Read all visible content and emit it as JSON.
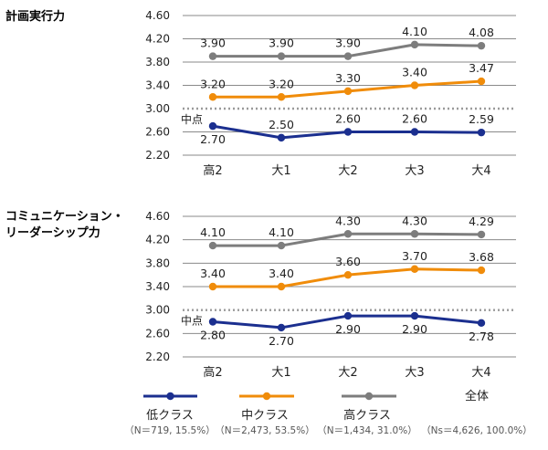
{
  "colors": {
    "low": "#1b2f8f",
    "mid": "#f08c0a",
    "high": "#7d7d7d",
    "grid": "#8a8a8a",
    "midline": "#9a9a9a"
  },
  "chart_data": [
    {
      "type": "line",
      "title": "計画実行力",
      "categories": [
        "高2",
        "大1",
        "大2",
        "大3",
        "大4"
      ],
      "yticks": [
        "4.60",
        "4.20",
        "3.80",
        "3.40",
        "3.00",
        "2.60",
        "2.20"
      ],
      "ylim": [
        2.2,
        4.6
      ],
      "midpoint": 3.0,
      "midpoint_label": "中点",
      "series": [
        {
          "name": "低クラス",
          "key": "low",
          "values": [
            2.7,
            2.5,
            2.6,
            2.6,
            2.59
          ],
          "labels": [
            "2.70",
            "2.50",
            "2.60",
            "2.60",
            "2.59"
          ],
          "label_pos": [
            "below",
            "above",
            "above",
            "above",
            "above"
          ]
        },
        {
          "name": "中クラス",
          "key": "mid",
          "values": [
            3.2,
            3.2,
            3.3,
            3.4,
            3.47
          ],
          "labels": [
            "3.20",
            "3.20",
            "3.30",
            "3.40",
            "3.47"
          ],
          "label_pos": [
            "above",
            "above",
            "above",
            "above",
            "above"
          ]
        },
        {
          "name": "高クラス",
          "key": "high",
          "values": [
            3.9,
            3.9,
            3.9,
            4.1,
            4.08
          ],
          "labels": [
            "3.90",
            "3.90",
            "3.90",
            "4.10",
            "4.08"
          ],
          "label_pos": [
            "above",
            "above",
            "above",
            "above",
            "above"
          ]
        }
      ]
    },
    {
      "type": "line",
      "title_lines": [
        "コミュニケーション・",
        "リーダーシップ力"
      ],
      "categories": [
        "高2",
        "大1",
        "大2",
        "大3",
        "大4"
      ],
      "yticks": [
        "4.60",
        "4.20",
        "3.80",
        "3.40",
        "3.00",
        "2.60",
        "2.20"
      ],
      "ylim": [
        2.2,
        4.6
      ],
      "midpoint": 3.0,
      "midpoint_label": "中点",
      "series": [
        {
          "name": "低クラス",
          "key": "low",
          "values": [
            2.8,
            2.7,
            2.9,
            2.9,
            2.78
          ],
          "labels": [
            "2.80",
            "2.70",
            "2.90",
            "2.90",
            "2.78"
          ],
          "label_pos": [
            "below",
            "below",
            "below",
            "below",
            "below"
          ]
        },
        {
          "name": "中クラス",
          "key": "mid",
          "values": [
            3.4,
            3.4,
            3.6,
            3.7,
            3.68
          ],
          "labels": [
            "3.40",
            "3.40",
            "3.60",
            "3.70",
            "3.68"
          ],
          "label_pos": [
            "above",
            "above",
            "above",
            "above",
            "above"
          ]
        },
        {
          "name": "高クラス",
          "key": "high",
          "values": [
            4.1,
            4.1,
            4.3,
            4.3,
            4.29
          ],
          "labels": [
            "4.10",
            "4.10",
            "4.30",
            "4.30",
            "4.29"
          ],
          "label_pos": [
            "above",
            "above",
            "above",
            "above",
            "above"
          ]
        }
      ]
    }
  ],
  "legend": [
    {
      "key": "low",
      "label": "低クラス",
      "sub": "（N＝719, 15.5%）"
    },
    {
      "key": "mid",
      "label": "中クラス",
      "sub": "（N＝2,473, 53.5%）"
    },
    {
      "key": "high",
      "label": "高クラス",
      "sub": "（N＝1,434, 31.0%）"
    },
    {
      "key": "all",
      "label": "全体",
      "sub": "（Ns＝4,626, 100.0%）"
    }
  ]
}
